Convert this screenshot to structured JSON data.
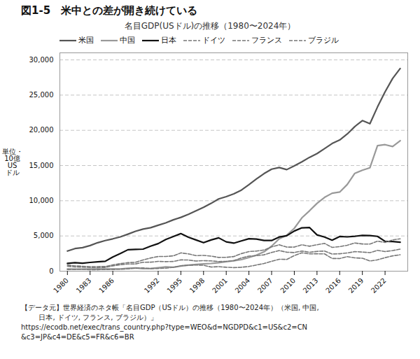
{
  "chart_data": {
    "type": "line",
    "title": "図1-5　米中との差が開き続けている",
    "subtitle": "名目GDP(USドル)の推移（1980〜2024年）",
    "ylabel": "単位・\n10億\nUS\nドル",
    "source": [
      "【データ元】世界経済のネタ帳「名目GDP（USドル）の推移（1980〜2024年）（米国, 中国,",
      "        日本, ドイツ, フランス, ブラジル）」",
      "https://ecodb.net/exec/trans_country.php?type=WEO&d=NGDPD&c1=US&c2=CN",
      "&c3=JP&c4=DE&c5=FR&c6=BR"
    ],
    "x": [
      1980,
      1981,
      1982,
      1983,
      1984,
      1985,
      1986,
      1987,
      1988,
      1989,
      1990,
      1991,
      1992,
      1993,
      1994,
      1995,
      1996,
      1997,
      1998,
      1999,
      2000,
      2001,
      2002,
      2003,
      2004,
      2005,
      2006,
      2007,
      2008,
      2009,
      2010,
      2011,
      2012,
      2013,
      2014,
      2015,
      2016,
      2017,
      2018,
      2019,
      2020,
      2021,
      2022,
      2023,
      2024
    ],
    "series": [
      {
        "name": "米国",
        "color": "#555555",
        "line_style": "solid",
        "values": [
          2857,
          3211,
          3345,
          3638,
          4041,
          4347,
          4590,
          4870,
          5253,
          5657,
          5979,
          6175,
          6520,
          6858,
          7292,
          7639,
          8073,
          8577,
          9063,
          9630,
          10253,
          10582,
          10977,
          11511,
          12275,
          13094,
          13856,
          14478,
          14719,
          14419,
          14964,
          15518,
          16155,
          16692,
          17393,
          18121,
          18624,
          19477,
          20533,
          21381,
          20936,
          23315,
          25463,
          27360,
          28780
        ]
      },
      {
        "name": "中国",
        "color": "#999999",
        "line_style": "solid",
        "values": [
          305,
          291,
          282,
          301,
          311,
          307,
          302,
          325,
          404,
          459,
          361,
          383,
          488,
          613,
          559,
          728,
          856,
          952,
          1029,
          1094,
          1211,
          1340,
          1471,
          1641,
          1942,
          2286,
          2752,
          3552,
          4598,
          5101,
          6087,
          7573,
          8561,
          9624,
          10476,
          11065,
          11233,
          12310,
          13895,
          14340,
          14688,
          17820,
          17963,
          17700,
          18530
        ]
      },
      {
        "name": "日本",
        "color": "#111111",
        "line_style": "solid",
        "values": [
          1105,
          1205,
          1130,
          1240,
          1328,
          1399,
          2018,
          2501,
          3044,
          3097,
          3132,
          3544,
          3912,
          4497,
          4921,
          5334,
          4813,
          4432,
          4045,
          4437,
          4731,
          4160,
          3980,
          4302,
          4606,
          4552,
          4367,
          4356,
          4849,
          5035,
          5700,
          6157,
          6203,
          5156,
          4850,
          4395,
          4923,
          4871,
          4954,
          5082,
          5055,
          4940,
          4232,
          4213,
          4110
        ]
      },
      {
        "name": "ドイツ",
        "color": "#777777",
        "line_style": "dashed",
        "values": [
          854,
          752,
          693,
          648,
          651,
          658,
          892,
          1078,
          1208,
          1257,
          1587,
          1875,
          2079,
          2085,
          2178,
          2596,
          2450,
          2212,
          2239,
          2141,
          1950,
          1969,
          2072,
          2497,
          2785,
          2854,
          3003,
          3443,
          3748,
          3418,
          3417,
          3757,
          3543,
          3753,
          3943,
          3375,
          3479,
          3684,
          3996,
          3861,
          3845,
          4260,
          4083,
          4447,
          4590
        ]
      },
      {
        "name": "フランス",
        "color": "#777777",
        "line_style": "dashed",
        "values": [
          699,
          608,
          566,
          529,
          511,
          533,
          756,
          919,
          1015,
          1025,
          1273,
          1276,
          1390,
          1353,
          1381,
          1605,
          1583,
          1442,
          1496,
          1460,
          1365,
          1393,
          1494,
          1869,
          2133,
          2197,
          2323,
          2662,
          2923,
          2694,
          2646,
          2864,
          2683,
          2811,
          2856,
          2438,
          2472,
          2583,
          2777,
          2715,
          2630,
          2957,
          2786,
          2924,
          3130
        ]
      },
      {
        "name": "ブラジル",
        "color": "#777777",
        "line_style": "dashed",
        "values": [
          235,
          264,
          278,
          197,
          211,
          229,
          257,
          282,
          330,
          433,
          462,
          362,
          387,
          430,
          547,
          769,
          840,
          871,
          841,
          587,
          644,
          558,
          507,
          558,
          664,
          882,
          1089,
          1397,
          1696,
          1667,
          2209,
          2614,
          2460,
          2471,
          2455,
          1803,
          1795,
          2063,
          1886,
          1840,
          1445,
          1609,
          1920,
          2174,
          2330
        ]
      }
    ],
    "xlim": [
      1979,
      2025
    ],
    "xticks": [
      1980,
      1983,
      1986,
      1992,
      1995,
      1998,
      2001,
      2004,
      2007,
      2010,
      2013,
      2016,
      2019,
      2022
    ],
    "ylim": [
      0,
      31000
    ],
    "yticks": [
      0,
      {
        "value": 5000,
        "label": "5,000"
      },
      {
        "value": 10000,
        "label": "10,000"
      },
      {
        "value": 15000,
        "label": "15,000"
      },
      {
        "value": 20000,
        "label": "20,000"
      },
      {
        "value": 25000,
        "label": "25,000"
      },
      {
        "value": 30000,
        "label": "30,000"
      }
    ],
    "grid": true,
    "legend": "upper left"
  }
}
